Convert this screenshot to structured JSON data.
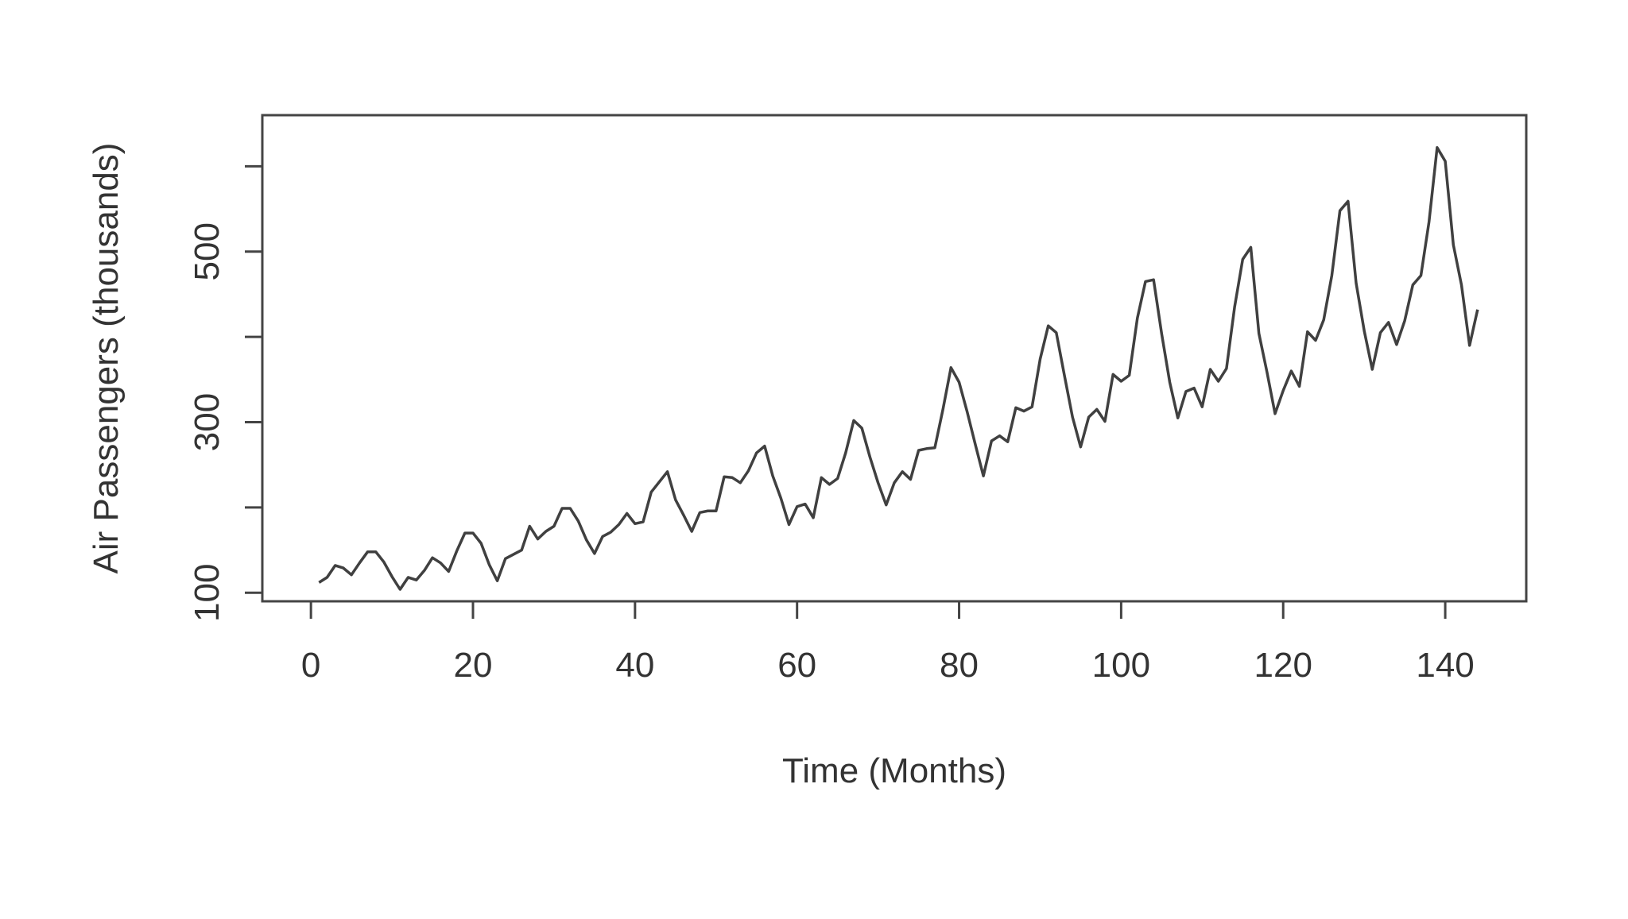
{
  "chart_data": {
    "type": "line",
    "title": "",
    "xlabel": "Time (Months)",
    "ylabel": "Air Passengers (thousands)",
    "xlim": [
      -6,
      150
    ],
    "ylim": [
      90,
      660
    ],
    "x_ticks": [
      0,
      20,
      40,
      60,
      80,
      100,
      120,
      140
    ],
    "x_tick_labels": [
      "0",
      "20",
      "40",
      "60",
      "80",
      "100",
      "120",
      "140"
    ],
    "y_ticks": [
      100,
      200,
      300,
      400,
      500,
      600
    ],
    "y_tick_labels": [
      "100",
      "",
      "300",
      "",
      "500",
      ""
    ],
    "grid": false,
    "legend": "none",
    "line_color": "#404040",
    "series": [
      {
        "x": [
          1,
          2,
          3,
          4,
          5,
          6,
          7,
          8,
          9,
          10,
          11,
          12,
          13,
          14,
          15,
          16,
          17,
          18,
          19,
          20,
          21,
          22,
          23,
          24,
          25,
          26,
          27,
          28,
          29,
          30,
          31,
          32,
          33,
          34,
          35,
          36,
          37,
          38,
          39,
          40,
          41,
          42,
          43,
          44,
          45,
          46,
          47,
          48,
          49,
          50,
          51,
          52,
          53,
          54,
          55,
          56,
          57,
          58,
          59,
          60,
          61,
          62,
          63,
          64,
          65,
          66,
          67,
          68,
          69,
          70,
          71,
          72,
          73,
          74,
          75,
          76,
          77,
          78,
          79,
          80,
          81,
          82,
          83,
          84,
          85,
          86,
          87,
          88,
          89,
          90,
          91,
          92,
          93,
          94,
          95,
          96,
          97,
          98,
          99,
          100,
          101,
          102,
          103,
          104,
          105,
          106,
          107,
          108,
          109,
          110,
          111,
          112,
          113,
          114,
          115,
          116,
          117,
          118,
          119,
          120,
          121,
          122,
          123,
          124,
          125,
          126,
          127,
          128,
          129,
          130,
          131,
          132,
          133,
          134,
          135,
          136,
          137,
          138,
          139,
          140,
          141,
          142,
          143,
          144
        ],
        "values": [
          112,
          118,
          132,
          129,
          121,
          135,
          148,
          148,
          136,
          119,
          104,
          118,
          115,
          126,
          141,
          135,
          125,
          149,
          170,
          170,
          158,
          133,
          114,
          140,
          145,
          150,
          178,
          163,
          172,
          178,
          199,
          199,
          184,
          162,
          146,
          166,
          171,
          180,
          193,
          181,
          183,
          218,
          230,
          242,
          209,
          191,
          172,
          194,
          196,
          196,
          236,
          235,
          229,
          243,
          264,
          272,
          237,
          211,
          180,
          201,
          204,
          188,
          235,
          227,
          234,
          264,
          302,
          293,
          259,
          229,
          203,
          229,
          242,
          233,
          267,
          269,
          270,
          315,
          364,
          347,
          312,
          274,
          237,
          278,
          284,
          277,
          317,
          313,
          318,
          374,
          413,
          405,
          355,
          306,
          271,
          306,
          315,
          301,
          356,
          348,
          355,
          422,
          465,
          467,
          404,
          347,
          305,
          336,
          340,
          318,
          362,
          348,
          363,
          435,
          491,
          505,
          404,
          359,
          310,
          337,
          360,
          342,
          406,
          396,
          420,
          472,
          548,
          559,
          463,
          407,
          362,
          405,
          417,
          391,
          419,
          461,
          472,
          535,
          622,
          606,
          508,
          461,
          390,
          432
        ]
      }
    ]
  }
}
